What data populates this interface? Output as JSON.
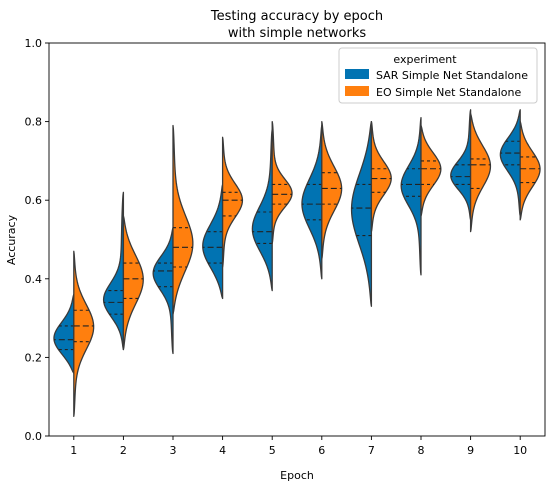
{
  "chart_data": {
    "type": "violin",
    "title": [
      "Testing accuracy by epoch",
      "with simple networks"
    ],
    "xlabel": "Epoch",
    "ylabel": "Accuracy",
    "ylim": [
      0.0,
      1.0
    ],
    "yticks": [
      "0.0",
      "0.2",
      "0.4",
      "0.6",
      "0.8",
      "1.0"
    ],
    "categories": [
      "1",
      "2",
      "3",
      "4",
      "5",
      "6",
      "7",
      "8",
      "9",
      "10"
    ],
    "legend": {
      "title": "experiment",
      "placement": "top-right"
    },
    "inner": "quartile",
    "split": true,
    "series": [
      {
        "name": "SAR Simple Net Standalone",
        "color": "#0173b2",
        "side": "left",
        "violins": [
          {
            "min": 0.16,
            "max": 0.36,
            "q1": 0.22,
            "median": 0.245,
            "q3": 0.28
          },
          {
            "min": 0.22,
            "max": 0.62,
            "q1": 0.31,
            "median": 0.34,
            "q3": 0.37
          },
          {
            "min": 0.21,
            "max": 0.53,
            "q1": 0.38,
            "median": 0.42,
            "q3": 0.44
          },
          {
            "min": 0.35,
            "max": 0.64,
            "q1": 0.44,
            "median": 0.48,
            "q3": 0.52
          },
          {
            "min": 0.37,
            "max": 0.78,
            "q1": 0.49,
            "median": 0.52,
            "q3": 0.57
          },
          {
            "min": 0.4,
            "max": 0.79,
            "q1": 0.55,
            "median": 0.59,
            "q3": 0.64
          },
          {
            "min": 0.33,
            "max": 0.8,
            "q1": 0.51,
            "median": 0.58,
            "q3": 0.64
          },
          {
            "min": 0.41,
            "max": 0.81,
            "q1": 0.61,
            "median": 0.64,
            "q3": 0.68
          },
          {
            "min": 0.55,
            "max": 0.83,
            "q1": 0.64,
            "median": 0.66,
            "q3": 0.69
          },
          {
            "min": 0.56,
            "max": 0.83,
            "q1": 0.69,
            "median": 0.72,
            "q3": 0.75
          }
        ]
      },
      {
        "name": "EO Simple Net Standalone",
        "color": "#ff7f0e",
        "side": "right",
        "violins": [
          {
            "min": 0.05,
            "max": 0.47,
            "q1": 0.24,
            "median": 0.28,
            "q3": 0.32
          },
          {
            "min": 0.22,
            "max": 0.56,
            "q1": 0.35,
            "median": 0.4,
            "q3": 0.44
          },
          {
            "min": 0.31,
            "max": 0.79,
            "q1": 0.43,
            "median": 0.48,
            "q3": 0.53
          },
          {
            "min": 0.43,
            "max": 0.76,
            "q1": 0.56,
            "median": 0.6,
            "q3": 0.62
          },
          {
            "min": 0.49,
            "max": 0.8,
            "q1": 0.59,
            "median": 0.615,
            "q3": 0.64
          },
          {
            "min": 0.45,
            "max": 0.8,
            "q1": 0.59,
            "median": 0.63,
            "q3": 0.67
          },
          {
            "min": 0.52,
            "max": 0.8,
            "q1": 0.62,
            "median": 0.655,
            "q3": 0.68
          },
          {
            "min": 0.56,
            "max": 0.79,
            "q1": 0.64,
            "median": 0.68,
            "q3": 0.7
          },
          {
            "min": 0.52,
            "max": 0.82,
            "q1": 0.63,
            "median": 0.69,
            "q3": 0.705
          },
          {
            "min": 0.55,
            "max": 0.8,
            "q1": 0.645,
            "median": 0.68,
            "q3": 0.71
          }
        ]
      }
    ]
  }
}
